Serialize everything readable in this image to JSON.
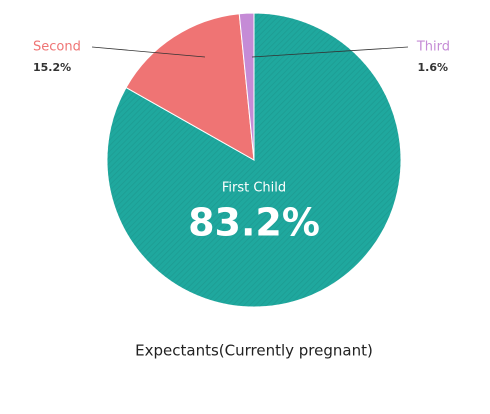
{
  "chart_data": {
    "type": "pie",
    "title": "Expectants(Currently pregnant)",
    "categories": [
      "First Child",
      "Second",
      "Third"
    ],
    "values": [
      83.2,
      15.2,
      1.6
    ],
    "value_labels": [
      "83.2%",
      "15.2%",
      "1.6%"
    ],
    "colors": [
      "#1fa89e",
      "#ef7474",
      "#c58bd6"
    ]
  }
}
